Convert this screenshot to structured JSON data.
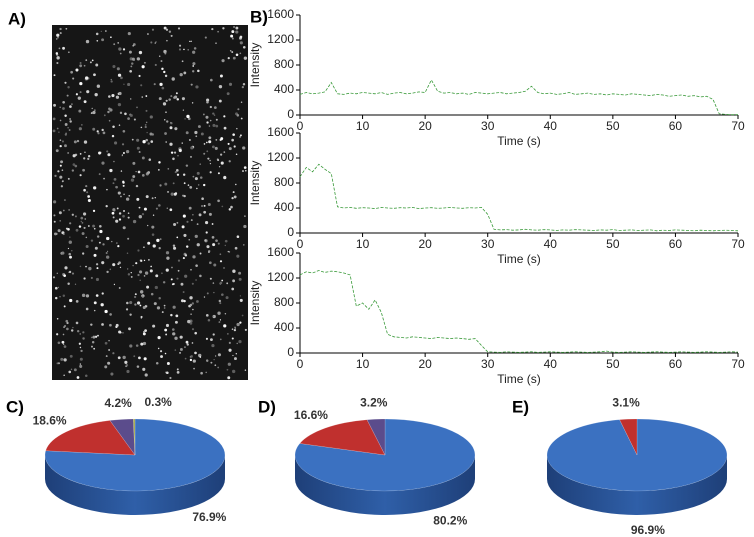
{
  "panel_labels": [
    "A)",
    "B)",
    "C)",
    "D)",
    "E)"
  ],
  "chart_data": [
    {
      "type": "line",
      "xlabel": "Time (s)",
      "ylabel": "Intensity",
      "color": "#3a9a3a",
      "xlim": [
        0,
        70
      ],
      "xticks": [
        0,
        10,
        20,
        30,
        40,
        50,
        60,
        70
      ],
      "ylim": [
        0,
        1600
      ],
      "yticks": [
        0,
        400,
        800,
        1200,
        1600
      ],
      "x": [
        0,
        1,
        2,
        3,
        4,
        5,
        6,
        7,
        8,
        9,
        10,
        11,
        12,
        13,
        14,
        15,
        16,
        17,
        18,
        19,
        20,
        21,
        22,
        23,
        24,
        25,
        26,
        27,
        28,
        29,
        30,
        31,
        32,
        33,
        34,
        35,
        36,
        37,
        38,
        39,
        40,
        41,
        42,
        43,
        44,
        45,
        46,
        47,
        48,
        49,
        50,
        51,
        52,
        53,
        54,
        55,
        56,
        57,
        58,
        59,
        60,
        61,
        62,
        63,
        64,
        65,
        66,
        67,
        68,
        69,
        70
      ],
      "values": [
        330,
        360,
        340,
        350,
        370,
        520,
        340,
        330,
        350,
        340,
        360,
        350,
        340,
        360,
        330,
        350,
        360,
        340,
        350,
        370,
        360,
        560,
        380,
        350,
        360,
        340,
        350,
        330,
        360,
        350,
        340,
        350,
        360,
        340,
        350,
        360,
        380,
        460,
        360,
        340,
        350,
        330,
        340,
        360,
        330,
        340,
        350,
        330,
        340,
        320,
        340,
        330,
        320,
        340,
        330,
        320,
        310,
        330,
        320,
        300,
        310,
        320,
        300,
        310,
        290,
        300,
        250,
        20,
        10,
        5,
        5
      ]
    },
    {
      "type": "line",
      "xlabel": "Time (s)",
      "ylabel": "Intensity",
      "color": "#3a9a3a",
      "xlim": [
        0,
        70
      ],
      "xticks": [
        0,
        10,
        20,
        30,
        40,
        50,
        60,
        70
      ],
      "ylim": [
        0,
        1600
      ],
      "yticks": [
        0,
        400,
        800,
        1200,
        1600
      ],
      "x": [
        0,
        1,
        2,
        3,
        4,
        5,
        6,
        7,
        8,
        9,
        10,
        11,
        12,
        13,
        14,
        15,
        16,
        17,
        18,
        19,
        20,
        21,
        22,
        23,
        24,
        25,
        26,
        27,
        28,
        29,
        30,
        31,
        32,
        33,
        34,
        35,
        36,
        37,
        38,
        39,
        40,
        41,
        42,
        43,
        44,
        45,
        46,
        47,
        48,
        49,
        50,
        51,
        52,
        53,
        54,
        55,
        56,
        57,
        58,
        59,
        60,
        61,
        62,
        63,
        64,
        65,
        66,
        67,
        68,
        69,
        70
      ],
      "values": [
        900,
        1050,
        980,
        1100,
        1020,
        950,
        420,
        400,
        410,
        395,
        405,
        400,
        390,
        410,
        400,
        395,
        405,
        400,
        410,
        390,
        400,
        405,
        395,
        400,
        410,
        400,
        395,
        405,
        400,
        410,
        300,
        60,
        50,
        55,
        45,
        50,
        60,
        50,
        45,
        55,
        50,
        40,
        50,
        45,
        55,
        50,
        45,
        40,
        50,
        45,
        55,
        40,
        45,
        50,
        40,
        45,
        50,
        35,
        45,
        40,
        50,
        45,
        40,
        35,
        45,
        40,
        35,
        40,
        45,
        40,
        35
      ]
    },
    {
      "type": "line",
      "xlabel": "Time (s)",
      "ylabel": "Intensity",
      "color": "#3a9a3a",
      "xlim": [
        0,
        70
      ],
      "xticks": [
        0,
        10,
        20,
        30,
        40,
        50,
        60,
        70
      ],
      "ylim": [
        0,
        1600
      ],
      "yticks": [
        0,
        400,
        800,
        1200,
        1600
      ],
      "x": [
        0,
        1,
        2,
        3,
        4,
        5,
        6,
        7,
        8,
        9,
        10,
        11,
        12,
        13,
        14,
        15,
        16,
        17,
        18,
        19,
        20,
        21,
        22,
        23,
        24,
        25,
        26,
        27,
        28,
        29,
        30,
        31,
        32,
        33,
        34,
        35,
        36,
        37,
        38,
        39,
        40,
        41,
        42,
        43,
        44,
        45,
        46,
        47,
        48,
        49,
        50,
        51,
        52,
        53,
        54,
        55,
        56,
        57,
        58,
        59,
        60,
        61,
        62,
        63,
        64,
        65,
        66,
        67,
        68,
        69,
        70
      ],
      "values": [
        1250,
        1300,
        1280,
        1320,
        1290,
        1310,
        1300,
        1280,
        1250,
        750,
        800,
        700,
        850,
        650,
        300,
        260,
        250,
        240,
        260,
        250,
        240,
        230,
        250,
        240,
        230,
        240,
        230,
        220,
        230,
        120,
        20,
        15,
        10,
        20,
        15,
        10,
        15,
        20,
        10,
        15,
        20,
        15,
        10,
        15,
        20,
        15,
        10,
        15,
        20,
        30,
        15,
        10,
        15,
        20,
        15,
        10,
        15,
        20,
        15,
        10,
        15,
        20,
        15,
        10,
        15,
        20,
        15,
        10,
        15,
        20,
        15
      ]
    },
    {
      "type": "pie",
      "values": [
        76.9,
        18.6,
        4.2,
        0.3
      ],
      "value_labels": [
        "76.9%",
        "18.6%",
        "4.2%",
        "0.3%"
      ],
      "colors": [
        "#3b71c1",
        "#c0302e",
        "#5b4c8c",
        "#a3a845"
      ]
    },
    {
      "type": "pie",
      "values": [
        80.2,
        16.6,
        3.2
      ],
      "value_labels": [
        "80.2%",
        "16.6%",
        "3.2%"
      ],
      "colors": [
        "#3b71c1",
        "#c0302e",
        "#5b4c8c"
      ]
    },
    {
      "type": "pie",
      "values": [
        96.9,
        3.1
      ],
      "value_labels": [
        "96.9%",
        "3.1%"
      ],
      "colors": [
        "#3b71c1",
        "#c0302e"
      ]
    }
  ]
}
